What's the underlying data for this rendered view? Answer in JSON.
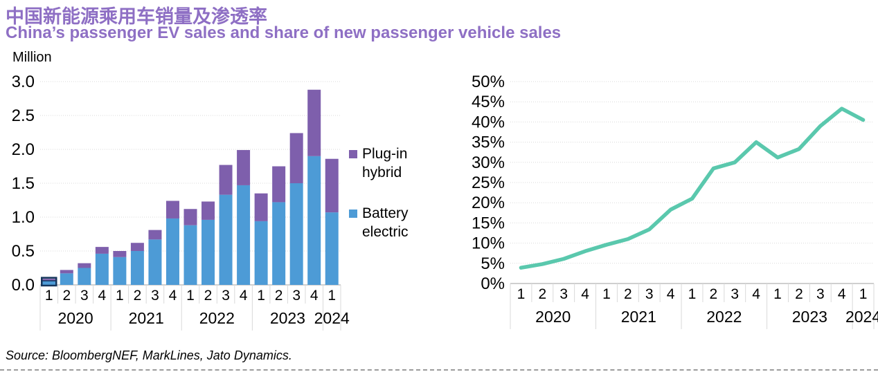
{
  "header": {
    "title_zh": "中国新能源乘用车销量及渗透率",
    "title_en": "China’s passenger EV sales and share of new passenger vehicle sales"
  },
  "source": "Source: BloombergNEF, MarkLines, Jato Dynamics.",
  "colors": {
    "title_purple": "#8E6FC4",
    "bar_blue": "#4D9BD6",
    "bar_purple": "#7E5FAC",
    "line_teal": "#5AC8AD",
    "highlight_navy": "#16365C",
    "grid": "#D9D9D9",
    "axis_line": "#BFBFBF",
    "axis_text": "#000000"
  },
  "chart_data": [
    {
      "type": "bar",
      "stacked": true,
      "unit_label": "Million",
      "categories": [
        "1",
        "2",
        "3",
        "4",
        "1",
        "2",
        "3",
        "4",
        "1",
        "2",
        "3",
        "4",
        "1",
        "2",
        "3",
        "4",
        "1"
      ],
      "year_groups": [
        {
          "label": "2020",
          "quarters": 4
        },
        {
          "label": "2021",
          "quarters": 4
        },
        {
          "label": "2022",
          "quarters": 4
        },
        {
          "label": "2023",
          "quarters": 4
        },
        {
          "label": "2024",
          "quarters": 1
        }
      ],
      "series": [
        {
          "name": "Battery electric",
          "values": [
            0.06,
            0.17,
            0.25,
            0.46,
            0.41,
            0.5,
            0.67,
            0.98,
            0.88,
            0.96,
            1.33,
            1.47,
            0.94,
            1.22,
            1.5,
            1.9,
            1.07
          ]
        },
        {
          "name": "Plug-in hybrid",
          "values": [
            0.03,
            0.05,
            0.07,
            0.1,
            0.09,
            0.12,
            0.14,
            0.26,
            0.24,
            0.27,
            0.44,
            0.52,
            0.41,
            0.53,
            0.74,
            0.98,
            0.79
          ]
        }
      ],
      "legend": [
        "Plug-in hybrid",
        "Battery electric"
      ],
      "ylim": [
        0,
        3.0
      ],
      "ytick_labels": [
        "0.0",
        "0.5",
        "1.0",
        "1.5",
        "2.0",
        "2.5",
        "3.0"
      ],
      "highlighted_bar_index": 0,
      "grid": true,
      "legend_position": "right"
    },
    {
      "type": "line",
      "categories": [
        "1",
        "2",
        "3",
        "4",
        "1",
        "2",
        "3",
        "4",
        "1",
        "2",
        "3",
        "4",
        "1",
        "2",
        "3",
        "4",
        "1"
      ],
      "year_groups": [
        {
          "label": "2020",
          "quarters": 4
        },
        {
          "label": "2021",
          "quarters": 4
        },
        {
          "label": "2022",
          "quarters": 4
        },
        {
          "label": "2023",
          "quarters": 4
        },
        {
          "label": "2024",
          "quarters": 1
        }
      ],
      "values": [
        3.9,
        4.8,
        6.1,
        8.0,
        9.6,
        11.0,
        13.4,
        18.3,
        21.0,
        28.5,
        30.0,
        35.0,
        31.2,
        33.3,
        39.0,
        43.3,
        40.5
      ],
      "ylim": [
        0,
        50
      ],
      "ytick_labels": [
        "0%",
        "5%",
        "10%",
        "15%",
        "20%",
        "25%",
        "30%",
        "35%",
        "40%",
        "45%",
        "50%"
      ],
      "grid": true
    }
  ]
}
